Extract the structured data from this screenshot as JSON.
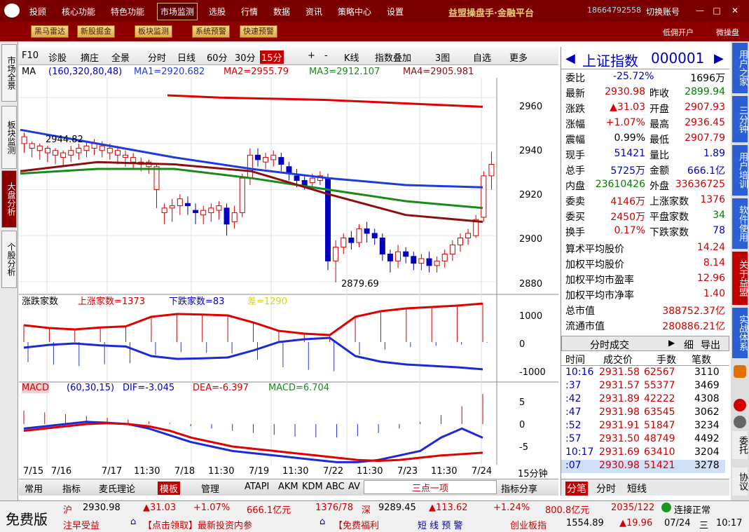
{
  "menu": [
    "投顾",
    "核心功能",
    "特色功能",
    "市场监测",
    "选股",
    "行情",
    "数据",
    "资讯",
    "策略中心",
    "设置"
  ],
  "brand": "益盟操盘手·金融平台",
  "phone": "18664792558",
  "switch_account": "切换账号",
  "toolbar": [
    "黑马雷达",
    "新股掘金",
    "板块监测",
    "系统预警",
    "快速预警"
  ],
  "toolbar_right": [
    "低佣开户",
    "微操盘"
  ],
  "left_tabs": [
    "市场全景",
    "板块监测",
    "大盘分析",
    "个股分析"
  ],
  "chart_toolbar": [
    "F10",
    "诊股",
    "摘庄",
    "全景",
    "分时",
    "日线",
    "60分",
    "30分",
    "15分",
    "+",
    "-",
    "K线",
    "指数叠加",
    "3图",
    "自选",
    "更多"
  ],
  "ma": {
    "label": "MA",
    "params": "(160,320,80,48)",
    "ma1": "MA1=2920.682",
    "ma2": "MA2=2955.79",
    "ma3": "MA3=2912.107",
    "ma4": "MA4=2905.981"
  },
  "price_labels": {
    "high": "2944.82",
    "low": "2879.69"
  },
  "price_axis": [
    "2960",
    "2940",
    "2920",
    "2900",
    "2880"
  ],
  "zdjs": {
    "label": "涨跌家数",
    "up": "上涨家数=1373",
    "down": "下跌家数=83",
    "diff": "差=1290",
    "axis": [
      "1000",
      "0",
      "-1000"
    ]
  },
  "macd": {
    "label": "MACD",
    "params": "(60,30,15)",
    "dif": "DIF=-3.045",
    "dea": "DEA=-6.397",
    "macd": "MACD=6.704",
    "axis": [
      "5",
      "0",
      "-5"
    ]
  },
  "x_labels": [
    "7/15",
    "7/16",
    "7/17",
    "11:30",
    "7/18",
    "11:30",
    "7/19",
    "11:30",
    "7/22",
    "11:30",
    "7/23",
    "11:30",
    "7/24"
  ],
  "period_tag": "15分钟",
  "bottom_tabs": [
    "常用",
    "指标",
    "麦氏理论",
    "模板",
    "管理",
    "ATAPI",
    "AKM",
    "KDM",
    "ABC",
    "AV"
  ],
  "bottom_input": "三点一项",
  "share": "指标分享",
  "quote": {
    "name": "上证指数",
    "code": "000001",
    "rows": [
      [
        "委比",
        "-25.72%",
        "",
        "1696万"
      ],
      [
        "最新",
        "2930.98",
        "昨收",
        "2899.94"
      ],
      [
        "涨跌",
        "▲31.03",
        "开盘",
        "2907.93"
      ],
      [
        "涨幅",
        "+1.07%",
        "最高",
        "2936.45"
      ],
      [
        "震幅",
        "0.99%",
        "最低",
        "2907.79"
      ],
      [
        "现手",
        "51421",
        "量比",
        "1.89"
      ],
      [
        "总手",
        "5725万",
        "金额",
        "666.1亿"
      ],
      [
        "内盘",
        "23610426",
        "外盘",
        "33636725"
      ],
      [
        "委卖",
        "4146万",
        "上涨家数",
        "1376"
      ],
      [
        "委买",
        "2450万",
        "平盘家数",
        "34"
      ],
      [
        "换手",
        "0.17%",
        "下跌家数",
        "78"
      ]
    ],
    "stats": [
      [
        "算术平均股价",
        "14.24"
      ],
      [
        "加权平均股价",
        "8.14"
      ],
      [
        "加权平均市盈率",
        "12.96"
      ],
      [
        "加权平均市净率",
        "1.40"
      ],
      [
        "总市值",
        "388752.37亿"
      ],
      [
        "流通市值",
        "280886.21亿"
      ]
    ],
    "ticks_title": "分时成交",
    "ticks_btn": [
      "细",
      "导出"
    ],
    "ticks_head": [
      "时间",
      "成交价",
      "手数",
      "笔数"
    ],
    "ticks": [
      [
        "10:16",
        "2931.58",
        "62567",
        "3110"
      ],
      [
        ":37",
        "2931.57",
        "55377",
        "3469"
      ],
      [
        ":42",
        "2931.89",
        "42222",
        "4308"
      ],
      [
        ":47",
        "2931.98",
        "63545",
        "3062"
      ],
      [
        ":52",
        "2931.91",
        "51847",
        "3234"
      ],
      [
        ":57",
        "2931.50",
        "48749",
        "4492"
      ],
      [
        "10:17",
        "2931.69",
        "63410",
        "3204"
      ],
      [
        ":07",
        "2930.98",
        "51421",
        "3278"
      ]
    ],
    "tabs": [
      "分笔",
      "分时",
      "短线"
    ]
  },
  "right_tabs": [
    "用户之家",
    "三分钟",
    "用户培训",
    "软件使用",
    "关于益盟",
    "实战体系",
    "委托",
    "协议"
  ],
  "status": {
    "edition": "免费版",
    "sh": "沪",
    "sh_v": "2930.98",
    "sh_c": "▲31.03",
    "sh_p": "+1.07%",
    "sh_amt": "666.1亿元",
    "sh_ratio": "1376/78",
    "sz": "深",
    "sz_v": "9289.45",
    "sz_c": "▲113.62",
    "sz_p": "+1.24%",
    "sz_amt": "800.8亿元",
    "sz_ratio": "2035/122",
    "conn": "连接正常",
    "news1": "注早受益",
    "news2": "【点击领取】最新投资内参",
    "news3": "【免费福利",
    "warn": "短 线 预 警",
    "cyb": "创业板指",
    "cyb_v": "1554.89",
    "cyb_c": "▲19.96",
    "date": "07/24",
    "weekday": "三",
    "time": "10:17"
  },
  "colors": {
    "up": "#d00000",
    "down": "#0000c0",
    "ma2": "#e00000",
    "ma1": "#1e3cdc",
    "ma3": "#1a8a1a",
    "ma4": "#8a1010"
  },
  "chart_data": {
    "type": "candlestick",
    "ylim": [
      2876,
      2968
    ],
    "candles": [
      [
        2940,
        2943,
        2936,
        2944.82
      ],
      [
        2938,
        2940,
        2934,
        2941
      ],
      [
        2937,
        2939,
        2933,
        2940
      ],
      [
        2936,
        2938,
        2932,
        2939
      ],
      [
        2935,
        2937,
        2931,
        2938
      ],
      [
        2934,
        2936,
        2930,
        2937
      ],
      [
        2935,
        2937,
        2932,
        2939
      ],
      [
        2936,
        2938,
        2933,
        2940
      ],
      [
        2937,
        2939,
        2934,
        2941
      ],
      [
        2938,
        2940,
        2935,
        2942
      ],
      [
        2937,
        2939,
        2934,
        2941
      ],
      [
        2936,
        2938,
        2933,
        2940
      ],
      [
        2935,
        2937,
        2931,
        2939
      ],
      [
        2934,
        2935,
        2930,
        2937
      ],
      [
        2932,
        2934,
        2929,
        2936
      ],
      [
        2931,
        2932,
        2928,
        2934
      ],
      [
        2930,
        2932,
        2927,
        2933
      ],
      [
        2920,
        2930,
        2912,
        2931
      ],
      [
        2910,
        2912,
        2905,
        2914
      ],
      [
        2912,
        2913,
        2906,
        2916
      ],
      [
        2913,
        2916,
        2909,
        2918
      ],
      [
        2914,
        2913,
        2909,
        2917
      ],
      [
        2911,
        2910,
        2905,
        2914
      ],
      [
        2909,
        2911,
        2905,
        2913
      ],
      [
        2910,
        2912,
        2906,
        2914
      ],
      [
        2911,
        2913,
        2907,
        2915
      ],
      [
        2912,
        2905,
        2900,
        2914
      ],
      [
        2906,
        2910,
        2903,
        2913
      ],
      [
        2910,
        2925,
        2908,
        2927
      ],
      [
        2925,
        2935,
        2922,
        2938
      ],
      [
        2935,
        2933,
        2930,
        2938
      ],
      [
        2932,
        2934,
        2929,
        2936
      ],
      [
        2933,
        2935,
        2930,
        2937
      ],
      [
        2934,
        2931,
        2928,
        2936
      ],
      [
        2930,
        2927,
        2924,
        2932
      ],
      [
        2926,
        2924,
        2921,
        2929
      ],
      [
        2924,
        2922,
        2920,
        2926
      ],
      [
        2923,
        2925,
        2921,
        2927
      ],
      [
        2924,
        2926,
        2922,
        2928
      ],
      [
        2925,
        2889,
        2885,
        2927
      ],
      [
        2889,
        2895,
        2879.69,
        2898
      ],
      [
        2895,
        2899,
        2892,
        2901
      ],
      [
        2899,
        2897,
        2894,
        2902
      ],
      [
        2897,
        2903,
        2895,
        2905
      ],
      [
        2903,
        2901,
        2897,
        2906
      ],
      [
        2901,
        2899,
        2896,
        2903
      ],
      [
        2899,
        2892,
        2889,
        2901
      ],
      [
        2892,
        2889,
        2884,
        2894
      ],
      [
        2889,
        2893,
        2886,
        2896
      ],
      [
        2893,
        2891,
        2888,
        2895
      ],
      [
        2891,
        2888,
        2885,
        2893
      ],
      [
        2888,
        2890,
        2885,
        2892
      ],
      [
        2890,
        2887,
        2884,
        2893
      ],
      [
        2887,
        2889,
        2884,
        2891
      ],
      [
        2889,
        2892,
        2886,
        2894
      ],
      [
        2892,
        2896,
        2889,
        2898
      ],
      [
        2896,
        2899,
        2893,
        2901
      ],
      [
        2899,
        2901,
        2896,
        2903
      ],
      [
        2900,
        2907,
        2899,
        2909
      ],
      [
        2908,
        2926,
        2906,
        2928
      ],
      [
        2926,
        2931,
        2920,
        2936.45
      ]
    ],
    "ma_lines": {
      "MA2": [
        2961,
        2960,
        2959.5,
        2959,
        2958,
        2957,
        2956
      ],
      "MA1": [
        2946,
        2940,
        2934,
        2929,
        2925,
        2922,
        2921
      ],
      "MA3": [
        2927,
        2929,
        2929,
        2925,
        2920,
        2915,
        2912
      ],
      "MA4": [
        2928,
        2932,
        2931,
        2928,
        2918,
        2909,
        2906
      ]
    },
    "zdjs_up": [
      600,
      500,
      450,
      520,
      560,
      900,
      1000,
      980,
      950,
      700,
      400,
      300,
      250,
      900,
      1100,
      1200,
      1250,
      1300,
      1373
    ],
    "macd_hist": [
      3,
      2.6,
      2.2,
      1.8,
      1.4,
      1,
      0.6,
      0.2,
      -0.5,
      -1,
      -1.5,
      -2,
      -2.4,
      -2.8,
      -3,
      -3,
      -2.7,
      -2,
      -1,
      0.5,
      2,
      4,
      6.7
    ]
  }
}
